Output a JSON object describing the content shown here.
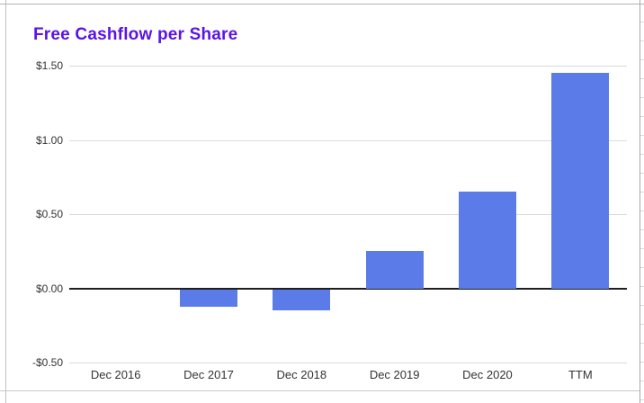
{
  "title": "Free Cashflow per Share",
  "colors": {
    "title_accent": "#5a14e6",
    "bar": "#5b7ce8",
    "grid_line": "#dadada",
    "zero_line": "#1f1f1f",
    "axis_label": "#333333",
    "sheet_line": "#b2b2b2"
  },
  "chart_data": {
    "type": "bar",
    "title": "Free Cashflow per Share",
    "categories": [
      "Dec 2016",
      "Dec 2017",
      "Dec 2018",
      "Dec 2019",
      "Dec 2020",
      "TTM"
    ],
    "values": [
      0,
      -0.12,
      -0.14,
      0.25,
      0.65,
      1.45
    ],
    "xlabel": "",
    "ylabel": "",
    "ylim": [
      -0.5,
      1.5
    ],
    "yticks": [
      {
        "value": 1.5,
        "label": "$1.50"
      },
      {
        "value": 1.0,
        "label": "$1.00"
      },
      {
        "value": 0.5,
        "label": "$0.50"
      },
      {
        "value": 0.0,
        "label": "$0.00"
      },
      {
        "value": -0.5,
        "label": "-$0.50"
      }
    ],
    "bar_color": "#5b7ce8",
    "grid": true,
    "legend_position": "none"
  }
}
